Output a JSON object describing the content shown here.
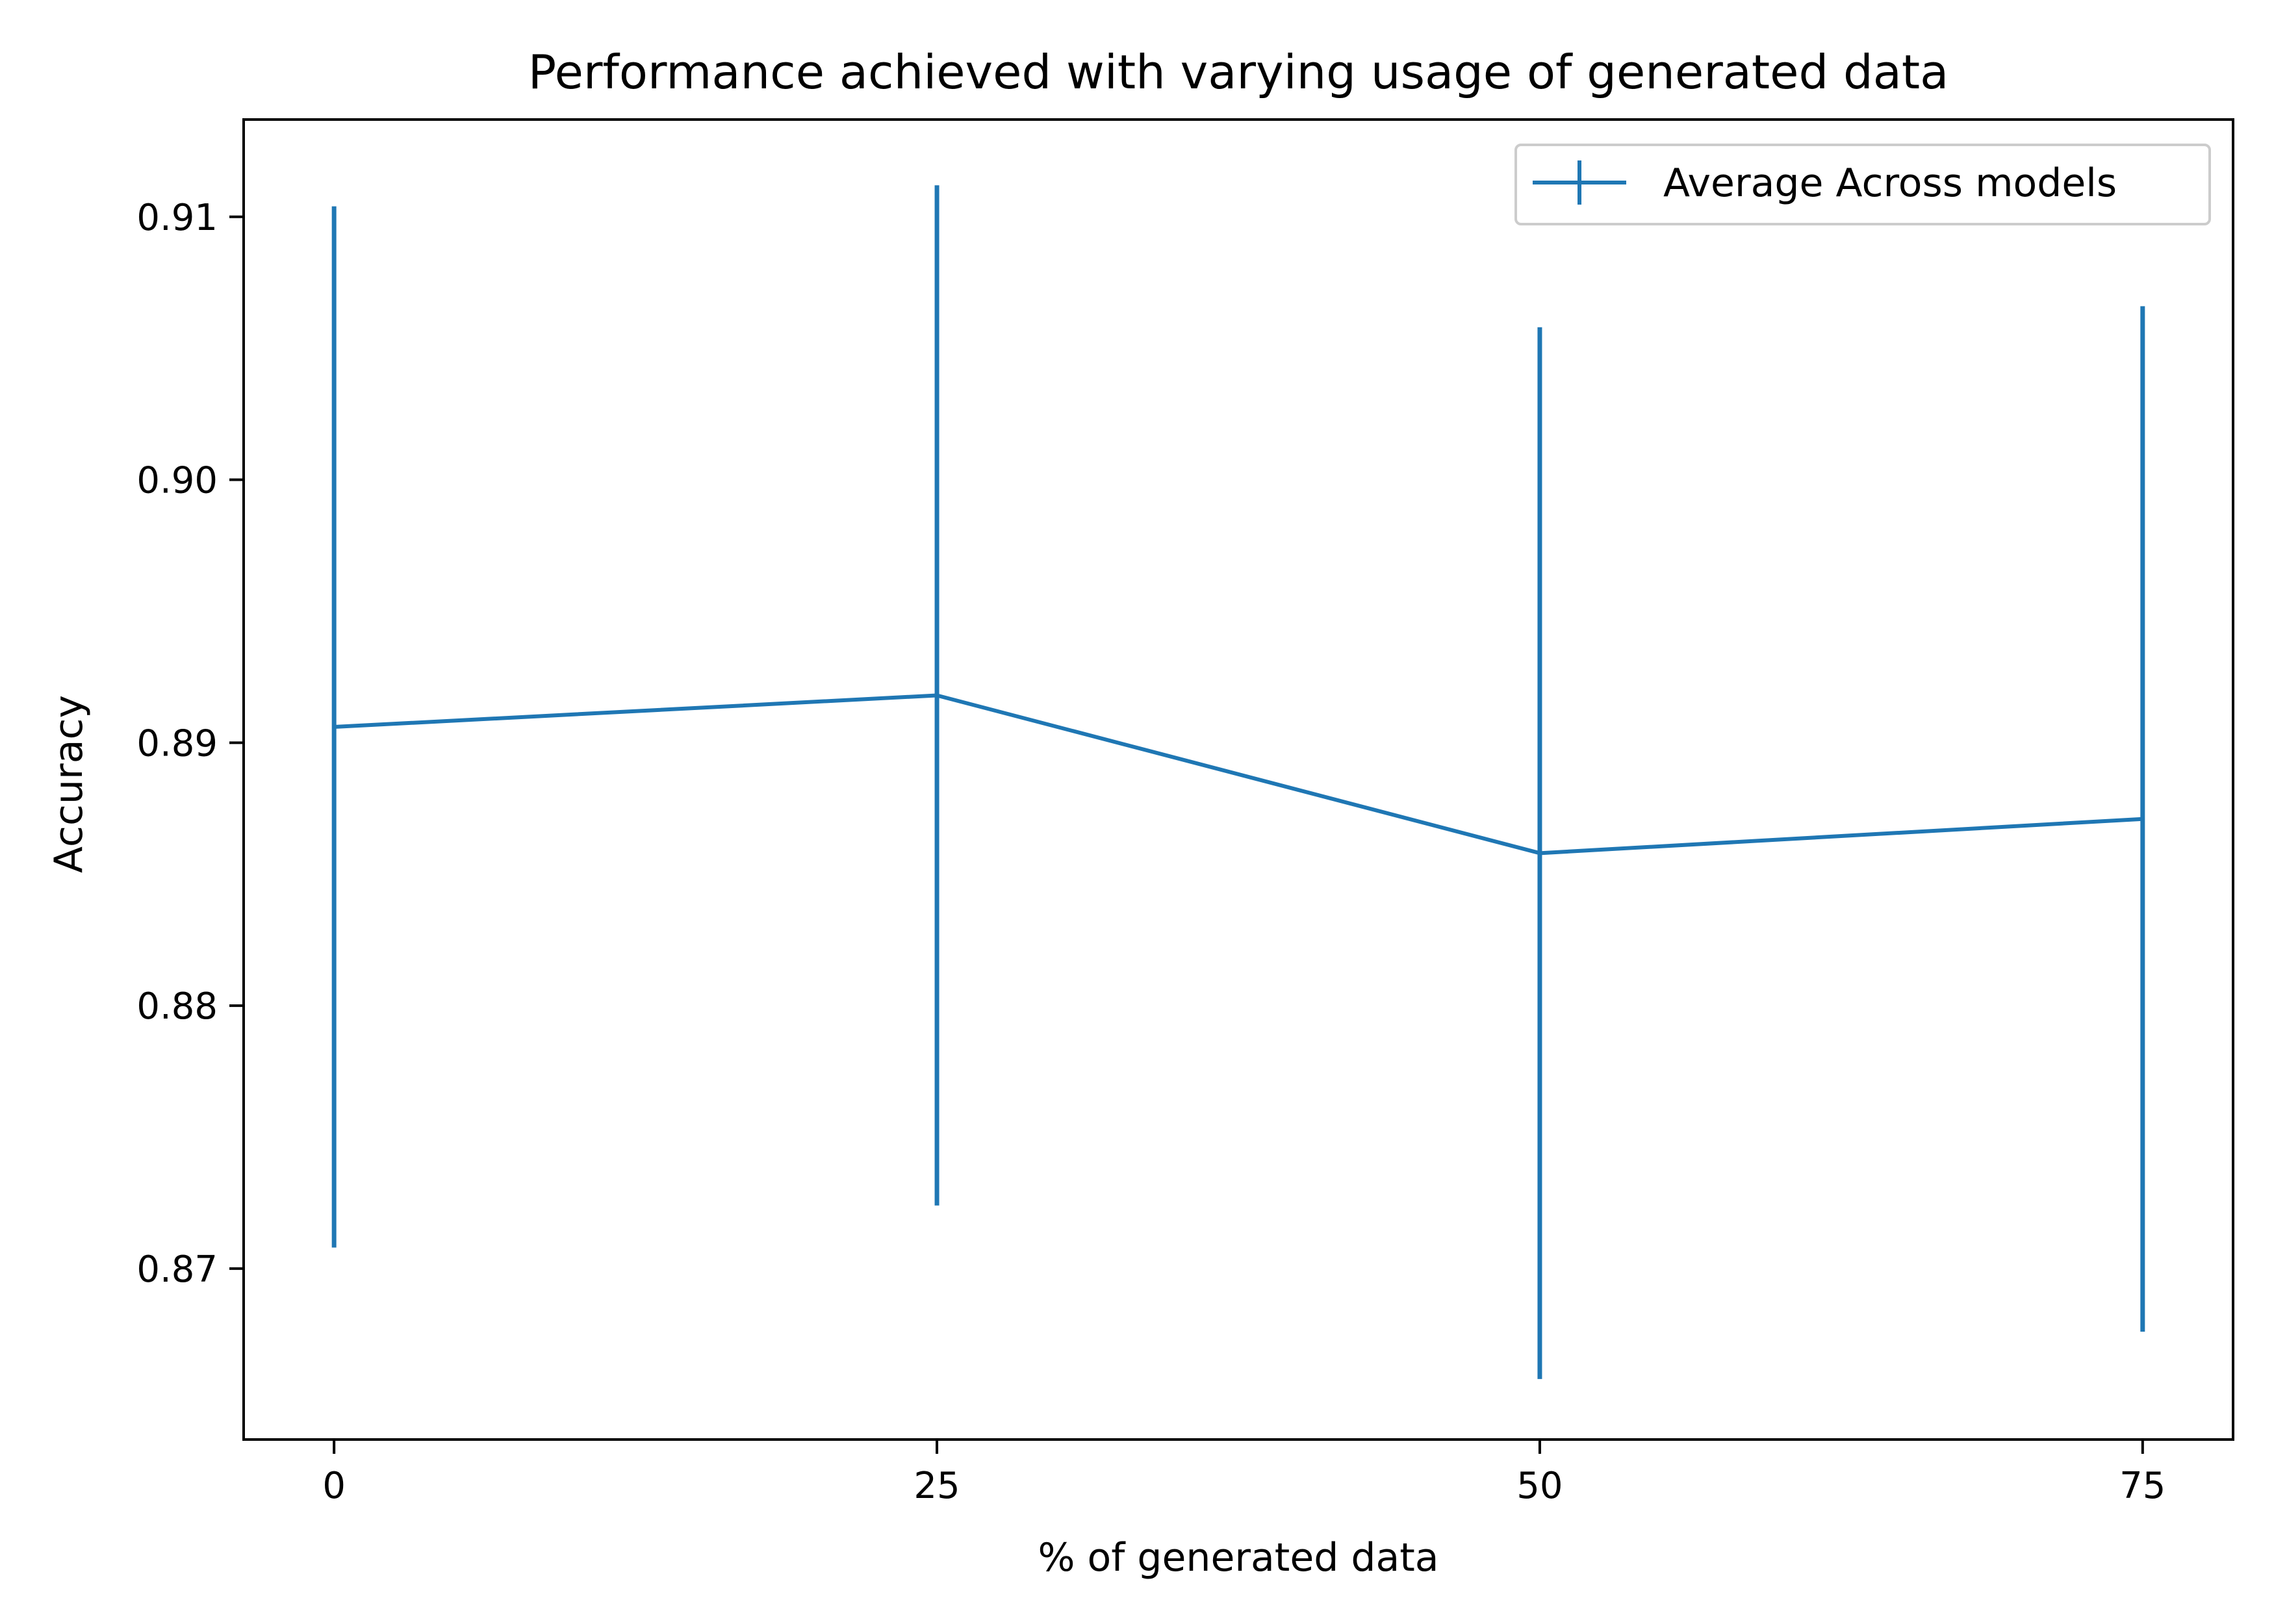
{
  "chart_data": {
    "type": "line",
    "title": "Performance achieved with varying usage of generated data",
    "xlabel": "% of generated data",
    "ylabel": "Accuracy",
    "xlim": [
      -3.75,
      78.75
    ],
    "ylim": [
      0.8635,
      0.9137
    ],
    "x_ticks": [
      0,
      25,
      50,
      75
    ],
    "x_tick_labels": [
      "0",
      "25",
      "50",
      "75"
    ],
    "y_ticks": [
      0.87,
      0.88,
      0.89,
      0.9,
      0.91
    ],
    "y_tick_labels": [
      "0.87",
      "0.88",
      "0.89",
      "0.90",
      "0.91"
    ],
    "grid": false,
    "legend_position": "top-right",
    "series": [
      {
        "name": "Average Across models",
        "color": "#1f77b4",
        "x": [
          0,
          25,
          50,
          75
        ],
        "y": [
          0.8906,
          0.8918,
          0.8858,
          0.8871
        ],
        "yerr": [
          0.0198,
          0.0194,
          0.02,
          0.0195
        ]
      }
    ]
  }
}
